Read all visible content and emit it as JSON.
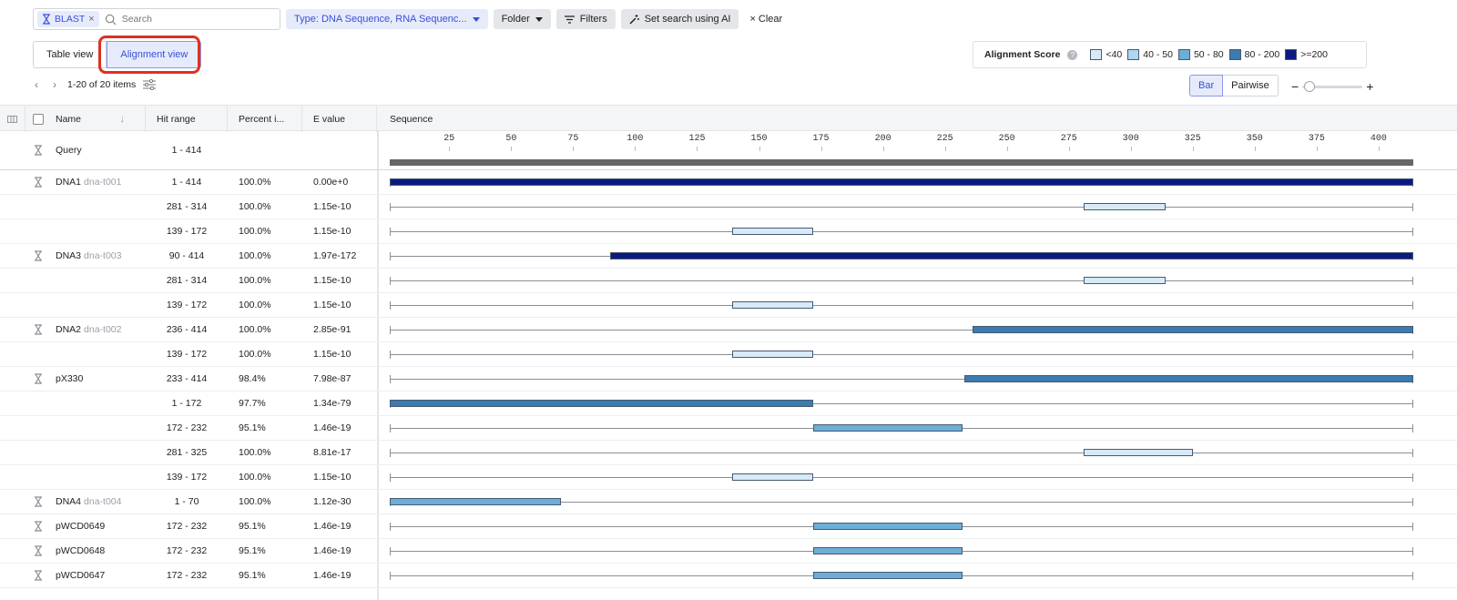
{
  "search": {
    "chip_label": "BLAST",
    "placeholder": "Search"
  },
  "toolbar": {
    "type_filter": "Type: DNA Sequence, RNA Sequenc...",
    "folder": "Folder",
    "filters": "Filters",
    "ai_search": "Set search using AI",
    "clear": "Clear"
  },
  "views": {
    "table": "Table view",
    "alignment": "Alignment view"
  },
  "legend": {
    "title": "Alignment Score",
    "help": "?",
    "items": [
      {
        "label": "<40",
        "color": "#d6eaf8"
      },
      {
        "label": "40 - 50",
        "color": "#aed6f1"
      },
      {
        "label": "50 - 80",
        "color": "#6baed6"
      },
      {
        "label": "80 - 200",
        "color": "#3a7bb0"
      },
      {
        "label": ">=200",
        "color": "#0b1a80"
      }
    ]
  },
  "pager": {
    "text": "1-20 of 20 items"
  },
  "modes": {
    "bar": "Bar",
    "pairwise": "Pairwise"
  },
  "zoom": {
    "minus": "−",
    "plus": "+"
  },
  "columns": {
    "name": "Name",
    "hit_range": "Hit range",
    "percent": "Percent i...",
    "evalue": "E value",
    "sequence": "Sequence"
  },
  "ruler": {
    "ticks": [
      25,
      50,
      75,
      100,
      125,
      150,
      175,
      200,
      225,
      250,
      275,
      300,
      325,
      350,
      375,
      400
    ],
    "min": 1,
    "max": 414
  },
  "query": {
    "name": "Query",
    "range": "1 - 414"
  },
  "rows": [
    {
      "name": "DNA1",
      "sub": "dna-t001",
      "range": "1 - 414",
      "start": 1,
      "end": 414,
      "pct": "100.0%",
      "evalue": "0.00e+0",
      "color": "#0b1a80",
      "icon": true
    },
    {
      "name": "",
      "sub": "",
      "range": "281 - 314",
      "start": 281,
      "end": 314,
      "pct": "100.0%",
      "evalue": "1.15e-10",
      "color": "#d6eaf8",
      "icon": false
    },
    {
      "name": "",
      "sub": "",
      "range": "139 - 172",
      "start": 139,
      "end": 172,
      "pct": "100.0%",
      "evalue": "1.15e-10",
      "color": "#d6eaf8",
      "icon": false
    },
    {
      "name": "DNA3",
      "sub": "dna-t003",
      "range": "90 - 414",
      "start": 90,
      "end": 414,
      "pct": "100.0%",
      "evalue": "1.97e-172",
      "color": "#0b1a80",
      "icon": true
    },
    {
      "name": "",
      "sub": "",
      "range": "281 - 314",
      "start": 281,
      "end": 314,
      "pct": "100.0%",
      "evalue": "1.15e-10",
      "color": "#d6eaf8",
      "icon": false
    },
    {
      "name": "",
      "sub": "",
      "range": "139 - 172",
      "start": 139,
      "end": 172,
      "pct": "100.0%",
      "evalue": "1.15e-10",
      "color": "#d6eaf8",
      "icon": false
    },
    {
      "name": "DNA2",
      "sub": "dna-t002",
      "range": "236 - 414",
      "start": 236,
      "end": 414,
      "pct": "100.0%",
      "evalue": "2.85e-91",
      "color": "#3a7bb0",
      "icon": true
    },
    {
      "name": "",
      "sub": "",
      "range": "139 - 172",
      "start": 139,
      "end": 172,
      "pct": "100.0%",
      "evalue": "1.15e-10",
      "color": "#d6eaf8",
      "icon": false
    },
    {
      "name": "pX330",
      "sub": "",
      "range": "233 - 414",
      "start": 233,
      "end": 414,
      "pct": "98.4%",
      "evalue": "7.98e-87",
      "color": "#3a7bb0",
      "icon": true
    },
    {
      "name": "",
      "sub": "",
      "range": "1 - 172",
      "start": 1,
      "end": 172,
      "pct": "97.7%",
      "evalue": "1.34e-79",
      "color": "#3a7bb0",
      "icon": false
    },
    {
      "name": "",
      "sub": "",
      "range": "172 - 232",
      "start": 172,
      "end": 232,
      "pct": "95.1%",
      "evalue": "1.46e-19",
      "color": "#6baed6",
      "icon": false
    },
    {
      "name": "",
      "sub": "",
      "range": "281 - 325",
      "start": 281,
      "end": 325,
      "pct": "100.0%",
      "evalue": "8.81e-17",
      "color": "#d6eaf8",
      "icon": false
    },
    {
      "name": "",
      "sub": "",
      "range": "139 - 172",
      "start": 139,
      "end": 172,
      "pct": "100.0%",
      "evalue": "1.15e-10",
      "color": "#d6eaf8",
      "icon": false
    },
    {
      "name": "DNA4",
      "sub": "dna-t004",
      "range": "1 - 70",
      "start": 1,
      "end": 70,
      "pct": "100.0%",
      "evalue": "1.12e-30",
      "color": "#6baed6",
      "icon": true
    },
    {
      "name": "pWCD0649",
      "sub": "",
      "range": "172 - 232",
      "start": 172,
      "end": 232,
      "pct": "95.1%",
      "evalue": "1.46e-19",
      "color": "#6baed6",
      "icon": true
    },
    {
      "name": "pWCD0648",
      "sub": "",
      "range": "172 - 232",
      "start": 172,
      "end": 232,
      "pct": "95.1%",
      "evalue": "1.46e-19",
      "color": "#6baed6",
      "icon": true
    },
    {
      "name": "pWCD0647",
      "sub": "",
      "range": "172 - 232",
      "start": 172,
      "end": 232,
      "pct": "95.1%",
      "evalue": "1.46e-19",
      "color": "#6baed6",
      "icon": true
    }
  ]
}
